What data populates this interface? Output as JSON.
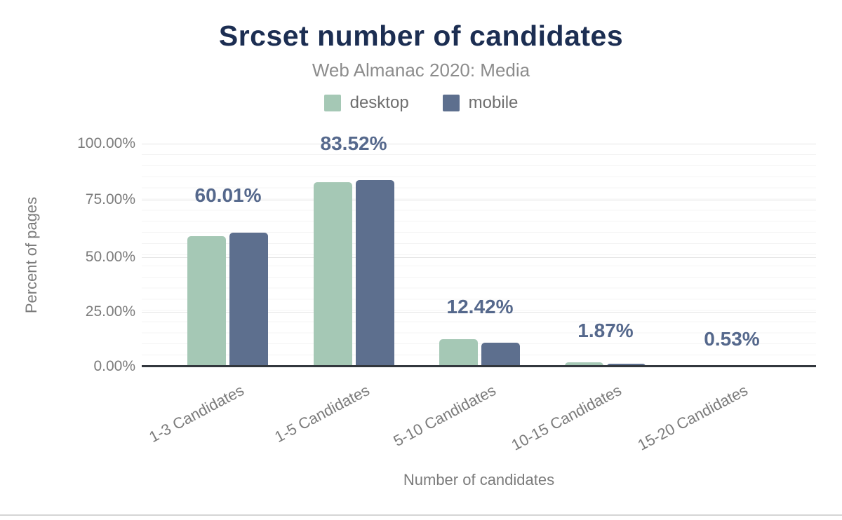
{
  "chart": {
    "title": "Srcset number of candidates",
    "subtitle": "Web Almanac 2020: Media",
    "legend": [
      {
        "label": "desktop",
        "color": "#a5c8b5"
      },
      {
        "label": "mobile",
        "color": "#5d6f8e"
      }
    ],
    "yaxis": {
      "title": "Percent of pages",
      "ticks": [
        "100.00%",
        "75.00%",
        "50.00%",
        "25.00%",
        "0.00%"
      ]
    },
    "xaxis": {
      "title": "Number of candidates",
      "categories": [
        "1-3 Candidates",
        "1-5 Candidates",
        "5-10 Candidates",
        "10-15 Candidates",
        "15-20 Candidates"
      ]
    },
    "annotations": [
      "60.01%",
      "83.52%",
      "12.42%",
      "1.87%",
      "0.53%"
    ],
    "colors": {
      "title": "#1c2e52",
      "annotation": "#55688c",
      "axis": "#32373d",
      "muted_text": "#7b7b7b"
    }
  },
  "chart_data": {
    "type": "bar",
    "title": "Srcset number of candidates",
    "subtitle": "Web Almanac 2020: Media",
    "categories": [
      "1-3 Candidates",
      "1-5 Candidates",
      "5-10 Candidates",
      "10-15 Candidates",
      "15-20 Candidates"
    ],
    "series": [
      {
        "name": "desktop",
        "color": "#a5c8b5",
        "values": [
          58.5,
          82.75,
          12.42,
          1.87,
          0.53
        ]
      },
      {
        "name": "mobile",
        "color": "#5d6f8e",
        "values": [
          60.01,
          83.52,
          10.85,
          1.3,
          0.45
        ]
      }
    ],
    "data_labels": [
      "60.01%",
      "83.52%",
      "12.42%",
      "1.87%",
      "0.53%"
    ],
    "xlabel": "Number of candidates",
    "ylabel": "Percent of pages",
    "ylim": [
      0,
      100
    ],
    "yticks": [
      0,
      25,
      50,
      75,
      100
    ],
    "ytick_format": "0.00%",
    "grid": "horizontal-major-25-minor-5",
    "legend_position": "top"
  }
}
